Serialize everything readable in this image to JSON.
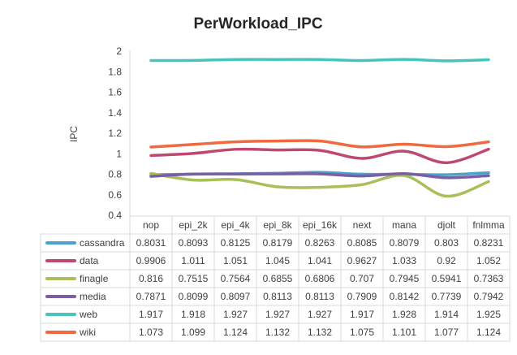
{
  "chart_data": {
    "type": "line",
    "title": "PerWorkload_IPC",
    "y_label": "IPC",
    "categories": [
      "nop",
      "epi_2k",
      "epi_4k",
      "epi_8k",
      "epi_16k",
      "next",
      "mana",
      "djolt",
      "fnlmma"
    ],
    "series": [
      {
        "name": "cassandra",
        "color": "#4aa3cc",
        "values": [
          0.8031,
          0.8093,
          0.8125,
          0.8179,
          0.8263,
          0.8085,
          0.8079,
          0.803,
          0.8231
        ]
      },
      {
        "name": "data",
        "color": "#bf4870",
        "values": [
          0.9906,
          1.011,
          1.051,
          1.045,
          1.041,
          0.9627,
          1.033,
          0.92,
          1.052
        ]
      },
      {
        "name": "finagle",
        "color": "#a8bf5a",
        "values": [
          0.816,
          0.7515,
          0.7564,
          0.6855,
          0.6806,
          0.707,
          0.7945,
          0.5941,
          0.7363
        ]
      },
      {
        "name": "media",
        "color": "#7b5ea3",
        "values": [
          0.7871,
          0.8099,
          0.8097,
          0.8113,
          0.8113,
          0.7909,
          0.8142,
          0.7739,
          0.7942
        ]
      },
      {
        "name": "web",
        "color": "#49c3bd",
        "values": [
          1.917,
          1.918,
          1.927,
          1.927,
          1.927,
          1.917,
          1.928,
          1.914,
          1.925
        ]
      },
      {
        "name": "wiki",
        "color": "#ef6a3e",
        "values": [
          1.073,
          1.099,
          1.124,
          1.132,
          1.132,
          1.075,
          1.101,
          1.077,
          1.124
        ]
      }
    ],
    "ylim": [
      0.4,
      2
    ],
    "yticks": [
      0.4,
      0.6,
      0.8,
      1,
      1.2,
      1.4,
      1.6,
      1.8,
      2
    ],
    "grid": false,
    "data_table": true
  }
}
